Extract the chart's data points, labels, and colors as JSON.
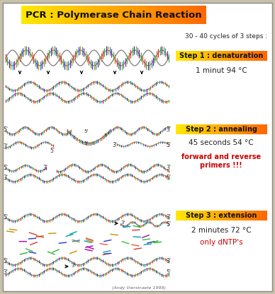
{
  "title": "PCR : Polymerase Chain Reaction",
  "title_bg": "#FFE800",
  "subtitle": "30 - 40 cycles of 3 steps :",
  "bg_color": "#C8C0A8",
  "step1_label": "Step 1 : denaturation",
  "step1_desc": "1 minut 94 °C",
  "step2_label": "Step 2 : annealing",
  "step2_desc": "45 seconds 54 °C",
  "step2_note": "forward and reverse\nprimers !!!",
  "step3_label": "Step 3 : extension",
  "step3_desc": "2 minutes 72 °C",
  "step3_note": "only dNTP's",
  "step_label_gradient_left": "#FFE800",
  "step_label_gradient_right": "#FF6600",
  "credit": "(Andy Vierstraete 1999)",
  "bar_colors": [
    "#E03030",
    "#30B030",
    "#3030D0",
    "#C09000",
    "#00A0B0",
    "#B000B0",
    "#30C030",
    "#E06030"
  ],
  "backbone_color": "#888888",
  "text_color": "#222222",
  "label_color": "#555555"
}
